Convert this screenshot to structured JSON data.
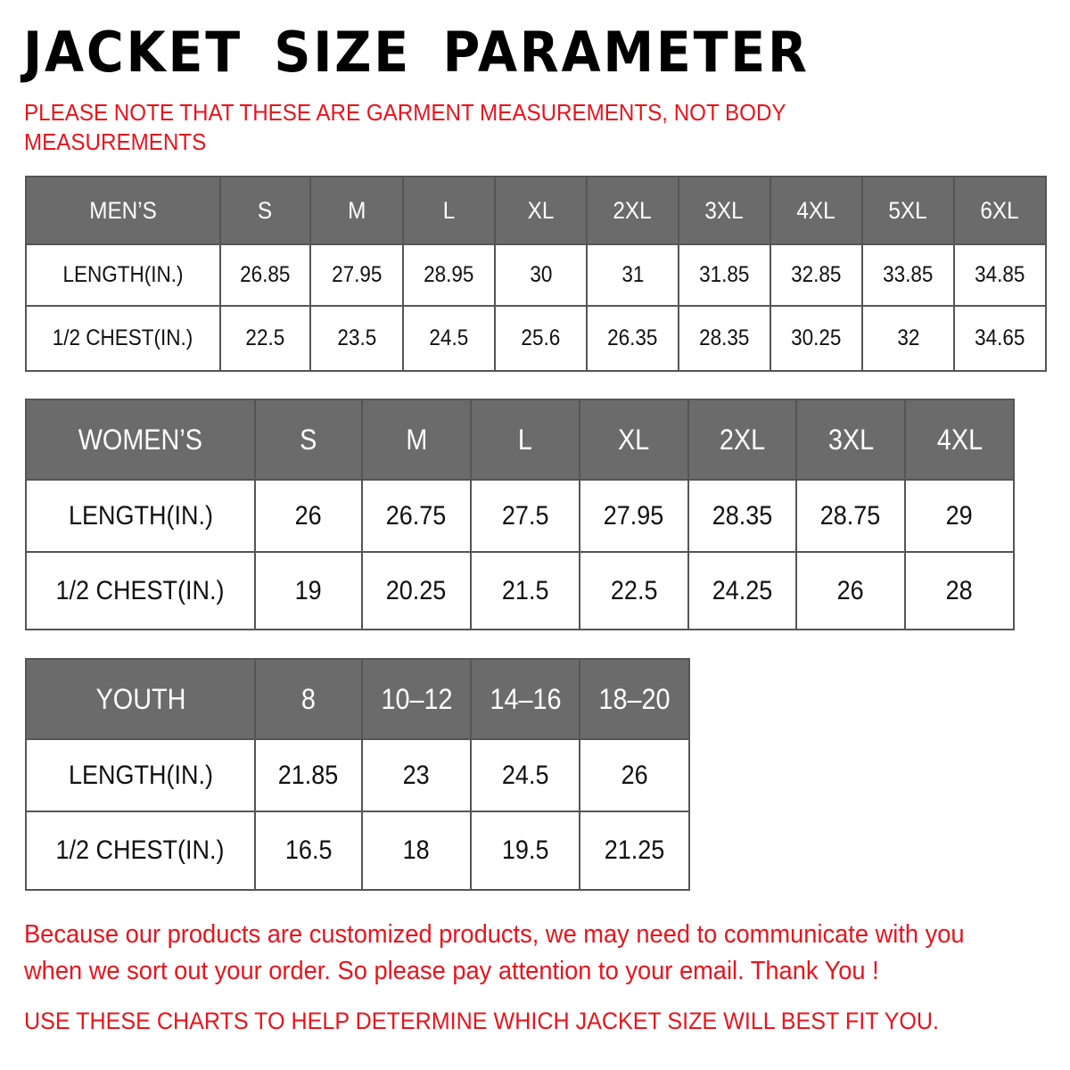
{
  "title": "JACKET SIZE PARAMETER",
  "note": "PLEASE NOTE THAT THESE ARE GARMENT MEASUREMENTS, NOT BODY MEASUREMENTS",
  "colors": {
    "header_bg": "#6b6b6b",
    "accent_red": "#e8141b"
  },
  "tables": {
    "men": {
      "header": [
        "MEN’S",
        "S",
        "M",
        "L",
        "XL",
        "2XL",
        "3XL",
        "4XL",
        "5XL",
        "6XL"
      ],
      "rows": [
        [
          "LENGTH(IN.)",
          "26.85",
          "27.95",
          "28.95",
          "30",
          "31",
          "31.85",
          "32.85",
          "33.85",
          "34.85"
        ],
        [
          "1/2 CHEST(IN.)",
          "22.5",
          "23.5",
          "24.5",
          "25.6",
          "26.35",
          "28.35",
          "30.25",
          "32",
          "34.65"
        ]
      ]
    },
    "women": {
      "header": [
        "WOMEN’S",
        "S",
        "M",
        "L",
        "XL",
        "2XL",
        "3XL",
        "4XL"
      ],
      "rows": [
        [
          "LENGTH(IN.)",
          "26",
          "26.75",
          "27.5",
          "27.95",
          "28.35",
          "28.75",
          "29"
        ],
        [
          "1/2 CHEST(IN.)",
          "19",
          "20.25",
          "21.5",
          "22.5",
          "24.25",
          "26",
          "28"
        ]
      ]
    },
    "youth": {
      "header": [
        "YOUTH",
        "8",
        "10–12",
        "14–16",
        "18–20"
      ],
      "rows": [
        [
          "LENGTH(IN.)",
          "21.85",
          "23",
          "24.5",
          "26"
        ],
        [
          "1/2 CHEST(IN.)",
          "16.5",
          "18",
          "19.5",
          "21.25"
        ]
      ]
    }
  },
  "footer": {
    "message": "Because our products are customized products, we may need to communicate with you when we sort out your order. So please pay attention to your email. Thank You !",
    "advice": "USE THESE CHARTS TO HELP DETERMINE WHICH JACKET SIZE WILL BEST FIT YOU."
  }
}
